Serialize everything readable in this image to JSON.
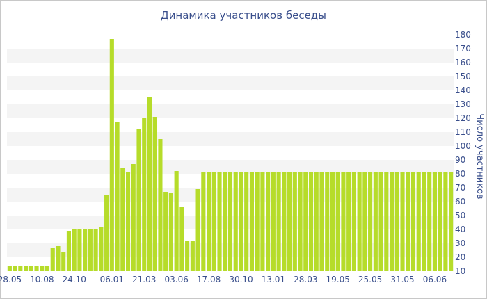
{
  "chart_data": {
    "type": "bar",
    "title": "Динамика участников беседы",
    "xlabel": "",
    "ylabel": "Число участников",
    "ylim": [
      10,
      180
    ],
    "y_ticks": [
      10,
      20,
      30,
      40,
      50,
      60,
      70,
      80,
      90,
      100,
      110,
      120,
      130,
      140,
      150,
      160,
      170,
      180
    ],
    "y_axis_side": "right",
    "grid": "alternating horizontal bands",
    "x_tick_labels": [
      {
        "label": "28.05",
        "index": 0
      },
      {
        "label": "10.08",
        "index": 6
      },
      {
        "label": "24.10",
        "index": 12
      },
      {
        "label": "06.01",
        "index": 19
      },
      {
        "label": "21.03",
        "index": 25
      },
      {
        "label": "03.06",
        "index": 31
      },
      {
        "label": "17.08",
        "index": 37
      },
      {
        "label": "30.10",
        "index": 43
      },
      {
        "label": "13.01",
        "index": 49
      },
      {
        "label": "28.03",
        "index": 55
      },
      {
        "label": "19.05",
        "index": 61
      },
      {
        "label": "25.05",
        "index": 67
      },
      {
        "label": "31.05",
        "index": 73
      },
      {
        "label": "06.06",
        "index": 79
      }
    ],
    "values": [
      14,
      14,
      14,
      14,
      14,
      14,
      14,
      14,
      27,
      28,
      24,
      39,
      40,
      40,
      40,
      40,
      40,
      42,
      65,
      177,
      117,
      84,
      81,
      87,
      112,
      120,
      135,
      121,
      105,
      67,
      66,
      82,
      56,
      32,
      32,
      69,
      81,
      81,
      81,
      81,
      81,
      81,
      81,
      81,
      81,
      81,
      81,
      81,
      81,
      81,
      81,
      81,
      81,
      81,
      81,
      81,
      81,
      81,
      81,
      81,
      81,
      81,
      81,
      81,
      81,
      81,
      81,
      81,
      81,
      81,
      81,
      81,
      81,
      81,
      81,
      81,
      81,
      81,
      81,
      81,
      81,
      81,
      81
    ],
    "colors": {
      "bar": "#b6dc2a",
      "band": "#f4f4f4",
      "axis_text": "#3a4f8c",
      "title": "#3a4f8c"
    }
  }
}
